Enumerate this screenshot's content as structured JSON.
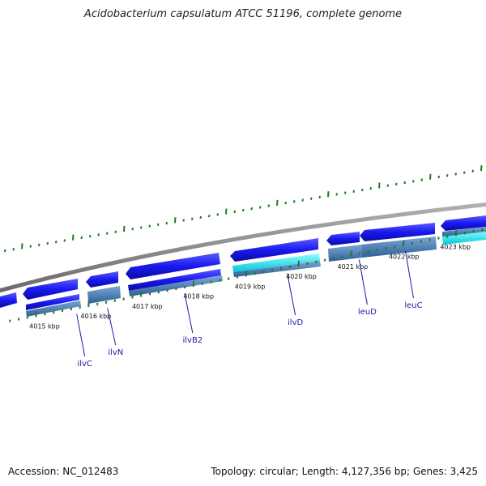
{
  "title": "Acidobacterium capsulatum ATCC 51196, complete genome",
  "footer": {
    "accession": "Accession: NC_012483",
    "info": "Topology: circular; Length: 4,127,356 bp; Genes: 3,425"
  },
  "colors": {
    "backbone": "#8a8a8a",
    "cds": "#1f1ff0",
    "cds_light": "#4a7fb8",
    "rna": "#00e5ee",
    "tick": "#1e7a1e",
    "gene_label": "#1a1aa8"
  },
  "kbp_labels": [
    "4015 kbp",
    "4016 kbp",
    "4017 kbp",
    "4018 kbp",
    "4019 kbp",
    "4020 kbp",
    "4021 kbp",
    "4022 kbp",
    "4023 kbp"
  ],
  "genes": [
    {
      "name": "ilvC",
      "kbp": 4015.5
    },
    {
      "name": "ilvN",
      "kbp": 4016.1
    },
    {
      "name": "ilvB2",
      "kbp": 4017.6
    },
    {
      "name": "ilvD",
      "kbp": 4019.6
    },
    {
      "name": "leuD",
      "kbp": 4021.0
    },
    {
      "name": "leuC",
      "kbp": 4021.9
    }
  ]
}
